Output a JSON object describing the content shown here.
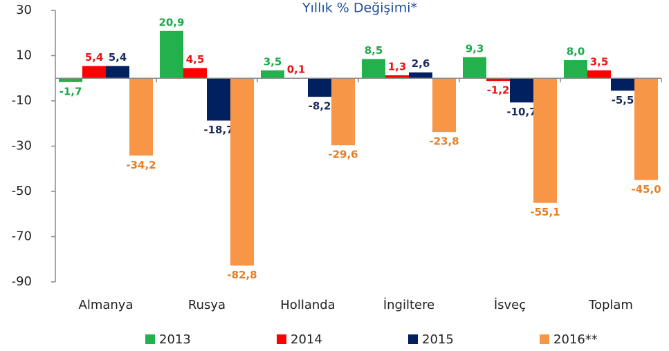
{
  "chart_data": {
    "type": "bar",
    "title": "Yıllık % Değişimi*",
    "categories": [
      "Almanya",
      "Rusya",
      "Hollanda",
      "İngiltere",
      "İsveç",
      "Toplam"
    ],
    "series": [
      {
        "name": "2013",
        "color": "#22b14c",
        "label_color": "#1aa84a",
        "values": [
          -1.7,
          20.9,
          3.5,
          8.5,
          9.3,
          8.0
        ],
        "value_labels": [
          "-1,7",
          "20,9",
          "3,5",
          "8,5",
          "9,3",
          "8,0"
        ]
      },
      {
        "name": "2014",
        "color": "#ff0000",
        "label_color": "#ee1111",
        "values": [
          5.4,
          4.5,
          0.1,
          1.3,
          -1.2,
          3.5
        ],
        "value_labels": [
          "5,4",
          "4,5",
          "0,1",
          "1,3",
          "-1,2",
          "3,5"
        ]
      },
      {
        "name": "2015",
        "color": "#002060",
        "label_color": "#1b2b5e",
        "values": [
          5.4,
          -18.7,
          -8.2,
          2.6,
          -10.7,
          -5.5
        ],
        "value_labels": [
          "5,4",
          "-18,7",
          "-8,2",
          "2,6",
          "-10,7",
          "-5,5"
        ]
      },
      {
        "name": "2016**",
        "color": "#f79646",
        "label_color": "#e67e22",
        "values": [
          -34.2,
          -82.8,
          -29.6,
          -23.8,
          -55.1,
          -45.0
        ],
        "value_labels": [
          "-34,2",
          "-82,8",
          "-29,6",
          "-23,8",
          "-55,1",
          "-45,0"
        ]
      }
    ],
    "ylim": [
      -90,
      30
    ],
    "yticks": [
      -90,
      -70,
      -50,
      -30,
      -10,
      10,
      30
    ],
    "grid": false,
    "legend": "bottom"
  }
}
